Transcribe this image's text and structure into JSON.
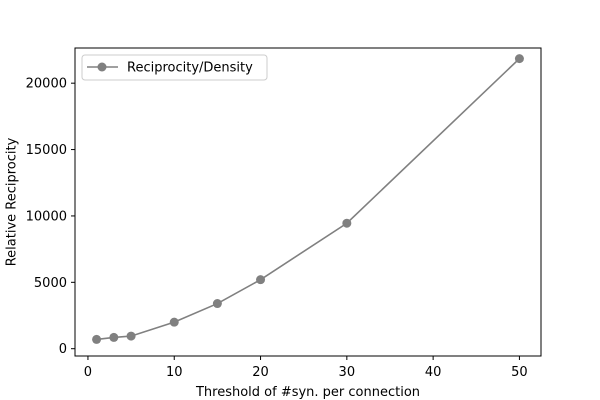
{
  "chart_data": {
    "type": "line",
    "title": "",
    "xlabel": "Threshold of #syn. per connection",
    "ylabel": "Relative Reciprocity",
    "xlim": [
      -1.5,
      52.5
    ],
    "ylim": [
      -550,
      22650
    ],
    "xticks": [
      0,
      10,
      20,
      30,
      40,
      50
    ],
    "yticks": [
      0,
      5000,
      10000,
      15000,
      20000
    ],
    "grid": false,
    "legend_position": "top-left",
    "series": [
      {
        "name": "Reciprocity/Density",
        "color": "#808080",
        "marker": "circle",
        "x": [
          1,
          3,
          5,
          10,
          15,
          20,
          30,
          50
        ],
        "y": [
          700,
          850,
          950,
          2000,
          3400,
          5200,
          9450,
          21850
        ]
      }
    ]
  }
}
